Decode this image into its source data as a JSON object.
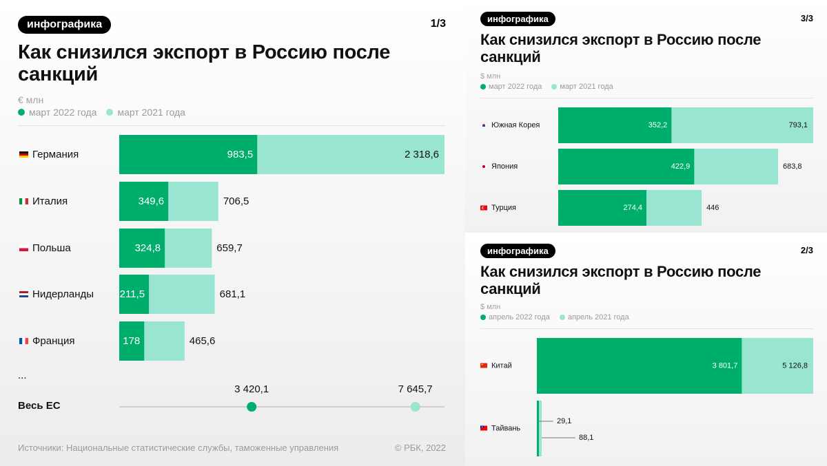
{
  "colors": {
    "dark": "#00ae6b",
    "light": "#99e5d1",
    "text_muted": "#9a9a9a",
    "axis": "#b0b0b0"
  },
  "panel1": {
    "badge": "инфографика",
    "page": "1/3",
    "title_line1": "Как снизился экспорт в Россию после",
    "title_line2": "санкций",
    "unit": "€ млн",
    "legend_2022": "март 2022 года",
    "legend_2021": "март 2021 года",
    "ellipsis": "...",
    "total_label": "Весь ЕС",
    "source": "Источники: Национальные статистические службы, таможенные управления",
    "copyright": "© РБК, 2022"
  },
  "panel3": {
    "badge": "инфографика",
    "page": "3/3",
    "title_line1": "Как снизился экспорт в Россию после",
    "title_line2": "санкций",
    "unit": "$ млн",
    "legend_2022": "март 2022 года",
    "legend_2021": "март 2021 года"
  },
  "panel2": {
    "badge": "инфографика",
    "page": "2/3",
    "title_line1": "Как снизился экспорт в Россию после",
    "title_line2": "санкций",
    "unit": "$ млн",
    "legend_2022": "апрель 2022 года",
    "legend_2021": "апрель 2021 года"
  },
  "chart_data": [
    {
      "type": "bar",
      "orientation": "horizontal",
      "unit": "€ млн",
      "categories": [
        "Германия",
        "Италия",
        "Польша",
        "Нидерланды",
        "Франция"
      ],
      "flags": [
        "de",
        "it",
        "pl",
        "nl",
        "fr"
      ],
      "series": [
        {
          "name": "март 2022 года",
          "values": [
            983.5,
            349.6,
            324.8,
            211.5,
            178
          ],
          "labels": [
            "983,5",
            "349,6",
            "324,8",
            "211,5",
            "178"
          ]
        },
        {
          "name": "март 2021 года",
          "values": [
            2318.6,
            706.5,
            659.7,
            681.1,
            465.6
          ],
          "labels": [
            "2 318,6",
            "706,5",
            "659,7",
            "681,1",
            "465,6"
          ]
        }
      ],
      "total": {
        "category": "Весь ЕС",
        "march_2022": 3420.1,
        "march_2022_label": "3 420,1",
        "march_2021": 7645.7,
        "march_2021_label": "7 645,7"
      }
    },
    {
      "type": "bar",
      "orientation": "horizontal",
      "unit": "$ млн",
      "categories": [
        "Южная Корея",
        "Япония",
        "Турция"
      ],
      "flags": [
        "kr",
        "jp",
        "tr"
      ],
      "series": [
        {
          "name": "март 2022 года",
          "values": [
            352.2,
            422.9,
            274.4
          ],
          "labels": [
            "352,2",
            "422,9",
            "274,4"
          ]
        },
        {
          "name": "март 2021 года",
          "values": [
            793.1,
            683.8,
            446
          ],
          "labels": [
            "793,1",
            "683,8",
            "446"
          ]
        }
      ]
    },
    {
      "type": "bar",
      "orientation": "horizontal",
      "unit": "$ млн",
      "categories": [
        "Китай",
        "Тайвань"
      ],
      "flags": [
        "cn",
        "tw"
      ],
      "series": [
        {
          "name": "апрель 2022 года",
          "values": [
            3801.7,
            29.1
          ],
          "labels": [
            "3 801,7",
            "29,1"
          ]
        },
        {
          "name": "апрель 2021 года",
          "values": [
            5126.8,
            88.1
          ],
          "labels": [
            "5 126,8",
            "88,1"
          ]
        }
      ]
    }
  ]
}
